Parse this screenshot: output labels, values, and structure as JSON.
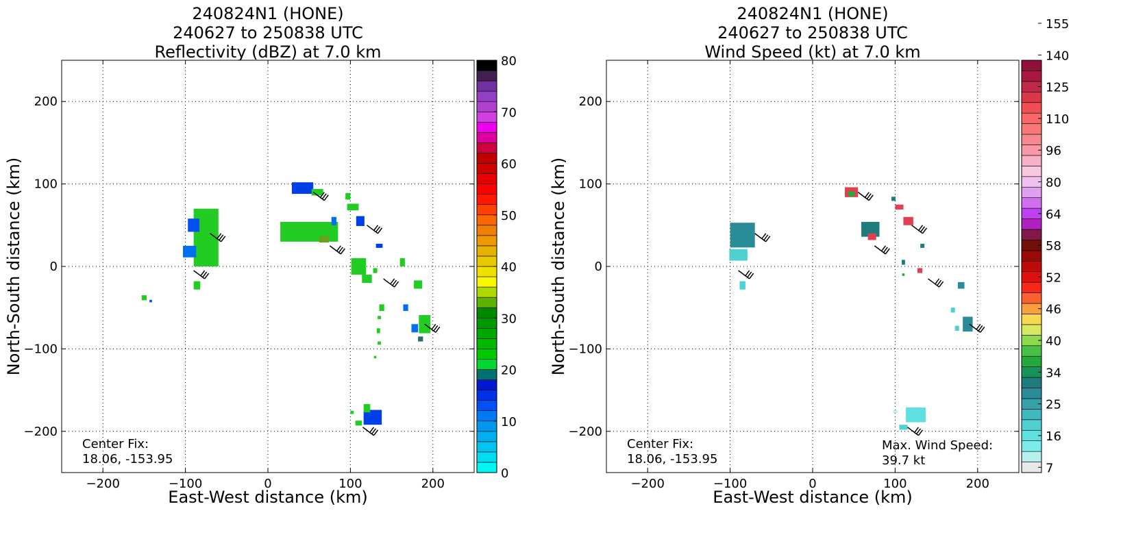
{
  "chart_data": [
    {
      "type": "heatmap",
      "title": [
        "240824N1 (HONE)",
        "240627 to 250838 UTC",
        "Reflectivity (dBZ) at 7.0 km"
      ],
      "xlabel": "East-West distance (km)",
      "ylabel": "North-South distance (km)",
      "xlim": [
        -250,
        250
      ],
      "ylim": [
        -250,
        250
      ],
      "xticks": [
        -200,
        -100,
        0,
        100,
        200
      ],
      "yticks": [
        -200,
        -100,
        0,
        100,
        200
      ],
      "tick_labels": [
        "−200",
        "−100",
        "0",
        "100",
        "200"
      ],
      "grid": true,
      "annotation": [
        "Center Fix:",
        "18.06, -153.95"
      ],
      "colorbar": {
        "min": 0,
        "max": 80,
        "tick_labels": [
          "0",
          "10",
          "20",
          "30",
          "40",
          "50",
          "60",
          "70",
          "80"
        ],
        "colors": [
          "#00f5f5",
          "#00dcf0",
          "#00c5ee",
          "#00aef0",
          "#0098ef",
          "#0079f2",
          "#0050f5",
          "#0030e8",
          "#0018d0",
          "#007070",
          "#00d830",
          "#00c800",
          "#00b800",
          "#00a800",
          "#009800",
          "#008800",
          "#60b000",
          "#b0d800",
          "#f8f800",
          "#f0e000",
          "#e8c800",
          "#e8b000",
          "#f09800",
          "#f08000",
          "#f86800",
          "#ff4000",
          "#ff1800",
          "#ff0000",
          "#e80000",
          "#d00000",
          "#c00000",
          "#d00040",
          "#e000a0",
          "#f000f0",
          "#d040e0",
          "#b040d0",
          "#9040c0",
          "#7030a0",
          "#402050",
          "#000000"
        ]
      },
      "wind_barbs": [
        {
          "x": -70,
          "y": 40
        },
        {
          "x": 55,
          "y": 90
        },
        {
          "x": 75,
          "y": 25
        },
        {
          "x": 120,
          "y": 50
        },
        {
          "x": -90,
          "y": -5
        },
        {
          "x": 140,
          "y": -15
        },
        {
          "x": 190,
          "y": -70
        },
        {
          "x": 115,
          "y": -195
        }
      ],
      "echo_regions": [
        {
          "x": -75,
          "y": 35,
          "w": 30,
          "h": 70,
          "color": "#22cc22"
        },
        {
          "x": -90,
          "y": 50,
          "w": 14,
          "h": 16,
          "color": "#0050f0"
        },
        {
          "x": -95,
          "y": 18,
          "w": 16,
          "h": 14,
          "color": "#0070f0"
        },
        {
          "x": -86,
          "y": -23,
          "w": 8,
          "h": 10,
          "color": "#22cc22"
        },
        {
          "x": -150,
          "y": -38,
          "w": 6,
          "h": 6,
          "color": "#22cc22"
        },
        {
          "x": -142,
          "y": -42,
          "w": 3,
          "h": 3,
          "color": "#0050f0"
        },
        {
          "x": 50,
          "y": 42,
          "w": 70,
          "h": 24,
          "color": "#22cc22"
        },
        {
          "x": 42,
          "y": 95,
          "w": 26,
          "h": 14,
          "color": "#0040e8"
        },
        {
          "x": 60,
          "y": 90,
          "w": 14,
          "h": 8,
          "color": "#22cc22"
        },
        {
          "x": 68,
          "y": 33,
          "w": 12,
          "h": 8,
          "color": "#6aa020"
        },
        {
          "x": 80,
          "y": 55,
          "w": 6,
          "h": 10,
          "color": "#0070f0"
        },
        {
          "x": 97,
          "y": 85,
          "w": 6,
          "h": 8,
          "color": "#22cc22"
        },
        {
          "x": 103,
          "y": 72,
          "w": 14,
          "h": 8,
          "color": "#22cc22"
        },
        {
          "x": 112,
          "y": 55,
          "w": 10,
          "h": 12,
          "color": "#0040e8"
        },
        {
          "x": 110,
          "y": 0,
          "w": 18,
          "h": 20,
          "color": "#22cc22"
        },
        {
          "x": 120,
          "y": -15,
          "w": 12,
          "h": 10,
          "color": "#22cc22"
        },
        {
          "x": 135,
          "y": 25,
          "w": 8,
          "h": 5,
          "color": "#0040e8"
        },
        {
          "x": 130,
          "y": -5,
          "w": 5,
          "h": 6,
          "color": "#22cc22"
        },
        {
          "x": 163,
          "y": 5,
          "w": 6,
          "h": 10,
          "color": "#22cc22"
        },
        {
          "x": 138,
          "y": -50,
          "w": 6,
          "h": 8,
          "color": "#22cc22"
        },
        {
          "x": 135,
          "y": -62,
          "w": 4,
          "h": 4,
          "color": "#22cc22"
        },
        {
          "x": 134,
          "y": -78,
          "w": 4,
          "h": 6,
          "color": "#22cc22"
        },
        {
          "x": 135,
          "y": -93,
          "w": 4,
          "h": 4,
          "color": "#22cc22"
        },
        {
          "x": 130,
          "y": -110,
          "w": 3,
          "h": 3,
          "color": "#22cc22"
        },
        {
          "x": 167,
          "y": -50,
          "w": 6,
          "h": 8,
          "color": "#0070f0"
        },
        {
          "x": 182,
          "y": -22,
          "w": 10,
          "h": 10,
          "color": "#22cc22"
        },
        {
          "x": 190,
          "y": -70,
          "w": 14,
          "h": 22,
          "color": "#22cc22"
        },
        {
          "x": 178,
          "y": -75,
          "w": 8,
          "h": 10,
          "color": "#0070f0"
        },
        {
          "x": 185,
          "y": -88,
          "w": 6,
          "h": 6,
          "color": "#2a6a6a"
        },
        {
          "x": 127,
          "y": -183,
          "w": 22,
          "h": 18,
          "color": "#0040e8"
        },
        {
          "x": 120,
          "y": -172,
          "w": 8,
          "h": 10,
          "color": "#22cc22"
        },
        {
          "x": 110,
          "y": -190,
          "w": 8,
          "h": 6,
          "color": "#22cc22"
        },
        {
          "x": 102,
          "y": -177,
          "w": 4,
          "h": 4,
          "color": "#22cc22"
        }
      ]
    },
    {
      "type": "heatmap",
      "title": [
        "240824N1 (HONE)",
        "240627 to 250838 UTC",
        "Wind Speed (kt) at 7.0 km"
      ],
      "xlabel": "East-West distance (km)",
      "ylabel": "North-South distance (km)",
      "xlim": [
        -250,
        250
      ],
      "ylim": [
        -250,
        250
      ],
      "xticks": [
        -200,
        -100,
        0,
        100,
        200
      ],
      "yticks": [
        -200,
        -100,
        0,
        100,
        200
      ],
      "tick_labels": [
        "−200",
        "−100",
        "0",
        "100",
        "200"
      ],
      "grid": true,
      "annotation": [
        "Center Fix:",
        "18.06, -153.95"
      ],
      "max_wind_annotation": [
        "Max. Wind Speed:",
        "39.7 kt"
      ],
      "colorbar": {
        "tick_labels": [
          "7",
          "16",
          "25",
          "34",
          "40",
          "46",
          "52",
          "58",
          "64",
          "80",
          "96",
          "110",
          "125",
          "140",
          "155"
        ],
        "colors": [
          "#e8e8e8",
          "#b8f0f0",
          "#7aecec",
          "#60e0e0",
          "#50d0d0",
          "#40b8c0",
          "#35a0aa",
          "#2a8c98",
          "#1e7c7c",
          "#17925a",
          "#22aa3c",
          "#46c046",
          "#8ed84e",
          "#d8e860",
          "#f8d850",
          "#f8a040",
          "#f86030",
          "#f82818",
          "#e01010",
          "#c00a0a",
          "#9a0808",
          "#701008",
          "#801848",
          "#b020c0",
          "#c040f0",
          "#d070f0",
          "#e0a0f0",
          "#f0c0f0",
          "#f8c8e0",
          "#f8b0c8",
          "#f898a8",
          "#f88890",
          "#f87878",
          "#f86868",
          "#f04e55",
          "#d83848",
          "#c02848",
          "#a81840",
          "#901038"
        ]
      },
      "wind_barbs": [
        {
          "x": -70,
          "y": 40
        },
        {
          "x": 55,
          "y": 90
        },
        {
          "x": 75,
          "y": 25
        },
        {
          "x": 120,
          "y": 50
        },
        {
          "x": -90,
          "y": -5
        },
        {
          "x": 140,
          "y": -15
        },
        {
          "x": 190,
          "y": -70
        },
        {
          "x": 115,
          "y": -195
        }
      ],
      "echo_regions": [
        {
          "x": -85,
          "y": 38,
          "w": 30,
          "h": 30,
          "color": "#2a8c98"
        },
        {
          "x": -90,
          "y": 14,
          "w": 22,
          "h": 14,
          "color": "#50d0d0"
        },
        {
          "x": -85,
          "y": -23,
          "w": 7,
          "h": 10,
          "color": "#50d0d0"
        },
        {
          "x": 47,
          "y": 90,
          "w": 16,
          "h": 12,
          "color": "#e04050"
        },
        {
          "x": 47,
          "y": 88,
          "w": 8,
          "h": 6,
          "color": "#22aa3c"
        },
        {
          "x": 70,
          "y": 45,
          "w": 22,
          "h": 18,
          "color": "#1e7c7c"
        },
        {
          "x": 72,
          "y": 36,
          "w": 10,
          "h": 8,
          "color": "#e04050"
        },
        {
          "x": 98,
          "y": 82,
          "w": 5,
          "h": 5,
          "color": "#1e7c7c"
        },
        {
          "x": 105,
          "y": 72,
          "w": 10,
          "h": 6,
          "color": "#e04050"
        },
        {
          "x": 116,
          "y": 55,
          "w": 12,
          "h": 10,
          "color": "#e04050"
        },
        {
          "x": 133,
          "y": 25,
          "w": 5,
          "h": 5,
          "color": "#1e7c7c"
        },
        {
          "x": 110,
          "y": 5,
          "w": 4,
          "h": 6,
          "color": "#1e7c7c"
        },
        {
          "x": 130,
          "y": -5,
          "w": 6,
          "h": 6,
          "color": "#e04050"
        },
        {
          "x": 110,
          "y": -10,
          "w": 3,
          "h": 3,
          "color": "#22aa3c"
        },
        {
          "x": 180,
          "y": -23,
          "w": 8,
          "h": 8,
          "color": "#2a8c98"
        },
        {
          "x": 170,
          "y": -53,
          "w": 5,
          "h": 6,
          "color": "#50d0d0"
        },
        {
          "x": 188,
          "y": -70,
          "w": 12,
          "h": 18,
          "color": "#2a8c98"
        },
        {
          "x": 175,
          "y": -75,
          "w": 5,
          "h": 6,
          "color": "#50d0d0"
        },
        {
          "x": 125,
          "y": -180,
          "w": 24,
          "h": 18,
          "color": "#60e0e0"
        },
        {
          "x": 110,
          "y": -195,
          "w": 10,
          "h": 6,
          "color": "#50d0d0"
        },
        {
          "x": 100,
          "y": -176,
          "w": 5,
          "h": 4,
          "color": "#b8f0f0"
        }
      ]
    }
  ]
}
